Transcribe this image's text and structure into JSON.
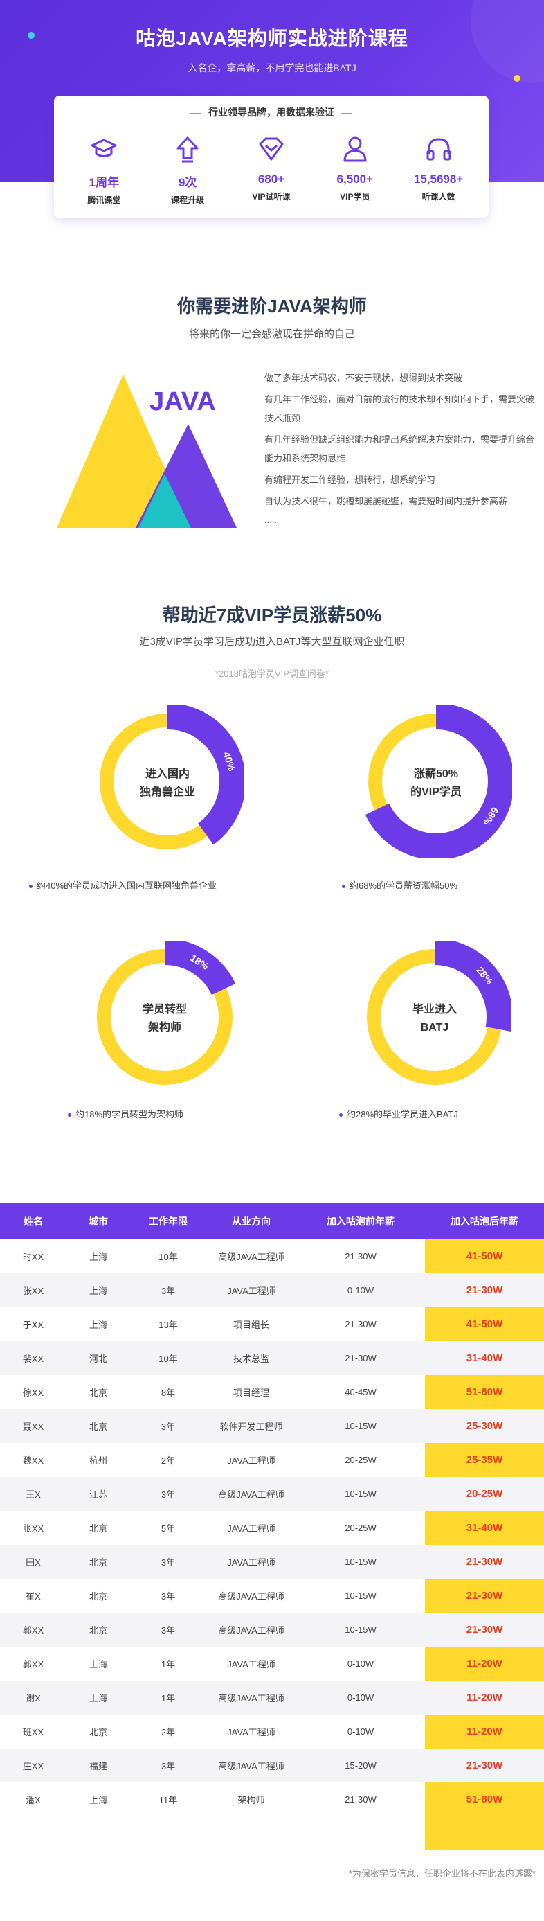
{
  "hero": {
    "title": "咕泡JAVA架构师实战进阶课程",
    "subtitle": "入名企，拿高薪，不用学完也能进BATJ",
    "stats_heading": "行业领导品牌，用数据来验证",
    "stats": [
      {
        "icon": "graduation-cap-icon",
        "value": "1周年",
        "label": "腾讯课堂"
      },
      {
        "icon": "upload-arrow-icon",
        "value": "9次",
        "label": "课程升级"
      },
      {
        "icon": "diamond-icon",
        "value": "680+",
        "label": "VIP试听课"
      },
      {
        "icon": "user-icon",
        "value": "6,500+",
        "label": "VIP学员"
      },
      {
        "icon": "headphones-icon",
        "value": "15,5698+",
        "label": "听课人数"
      }
    ]
  },
  "need": {
    "title": "你需要进阶JAVA架构师",
    "subtitle": "将来的你一定会感激现在拼命的自己",
    "logo_text": "JAVA",
    "pains": [
      "做了多年技术码农，不安于现状，想得到技术突破",
      "有几年工作经验，面对目前的流行的技术却不知如何下手，需要突破",
      "技术瓶颈",
      "有几年经验但缺乏组织能力和提出系统解决方案能力，需要提升综合",
      "能力和系统架构思维",
      "有编程开发工作经验，想转行，想系统学习",
      "自认为技术很牛，跳槽却屡屡碰壁，需要短时间内提升参高薪",
      "....."
    ]
  },
  "salary": {
    "title": "帮助近7成VIP学员涨薪50%",
    "subtitle": "近3成VIP学员学习后成功进入BATJ等大型互联网企业任职",
    "survey": "*2018咕泡学员VIP调查问卷*",
    "donuts": [
      {
        "center_line1": "进入国内",
        "center_line2": "独角兽企业",
        "percent_label": "40%",
        "percent": 40,
        "note": "约40%的学员成功进入国内互联网独角兽企业"
      },
      {
        "center_line1": "涨薪50%",
        "center_line2": "的VIP学员",
        "percent_label": "68%",
        "percent": 68,
        "note": "约68%的学员薪资涨幅50%"
      },
      {
        "center_line1": "学员转型",
        "center_line2": "架构师",
        "percent_label": "18%",
        "percent": 18,
        "note": "约18%的学员转型为架构师"
      },
      {
        "center_line1": "毕业进入",
        "center_line2": "BATJ",
        "percent_label": "28%",
        "percent": 28,
        "note": "约28%的毕业学员进入BATJ"
      }
    ],
    "colors": {
      "purple": "#6c3ae6",
      "yellow": "#ffd82e"
    }
  },
  "table": {
    "title": "部分VIP学员薪资表",
    "headers": [
      "姓名",
      "城市",
      "工作年限",
      "从业方向",
      "加入咕泡前年薪",
      "加入咕泡后年薪"
    ],
    "rows": [
      [
        "时XX",
        "上海",
        "10年",
        "高级JAVA工程师",
        "21-30W",
        "41-50W"
      ],
      [
        "张XX",
        "上海",
        "3年",
        "JAVA工程师",
        "0-10W",
        "21-30W"
      ],
      [
        "于XX",
        "上海",
        "13年",
        "项目组长",
        "21-30W",
        "41-50W"
      ],
      [
        "裴XX",
        "河北",
        "10年",
        "技术总监",
        "21-30W",
        "31-40W"
      ],
      [
        "徐XX",
        "北京",
        "8年",
        "项目经理",
        "40-45W",
        "51-80W"
      ],
      [
        "聂XX",
        "北京",
        "3年",
        "软件开发工程师",
        "10-15W",
        "25-30W"
      ],
      [
        "魏XX",
        "杭州",
        "2年",
        "JAVA工程师",
        "20-25W",
        "25-35W"
      ],
      [
        "王X",
        "江苏",
        "3年",
        "高级JAVA工程师",
        "10-15W",
        "20-25W"
      ],
      [
        "张XX",
        "北京",
        "5年",
        "JAVA工程师",
        "20-25W",
        "31-40W"
      ],
      [
        "田X",
        "北京",
        "3年",
        "JAVA工程师",
        "10-15W",
        "21-30W"
      ],
      [
        "崔X",
        "北京",
        "3年",
        "高级JAVA工程师",
        "10-15W",
        "21-30W"
      ],
      [
        "郭XX",
        "北京",
        "3年",
        "高级JAVA工程师",
        "10-15W",
        "21-30W"
      ],
      [
        "郭XX",
        "上海",
        "1年",
        "JAVA工程师",
        "0-10W",
        "11-20W"
      ],
      [
        "谢X",
        "上海",
        "1年",
        "高级JAVA工程师",
        "0-10W",
        "11-20W"
      ],
      [
        "班XX",
        "北京",
        "2年",
        "JAVA工程师",
        "0-10W",
        "11-20W"
      ],
      [
        "庄XX",
        "福建",
        "3年",
        "高级JAVA工程师",
        "15-20W",
        "21-30W"
      ],
      [
        "潘X",
        "上海",
        "11年",
        "架构师",
        "21-30W",
        "51-80W"
      ]
    ],
    "footnote": "*为保密学员信息，任职企业将不在此表内透露*"
  }
}
